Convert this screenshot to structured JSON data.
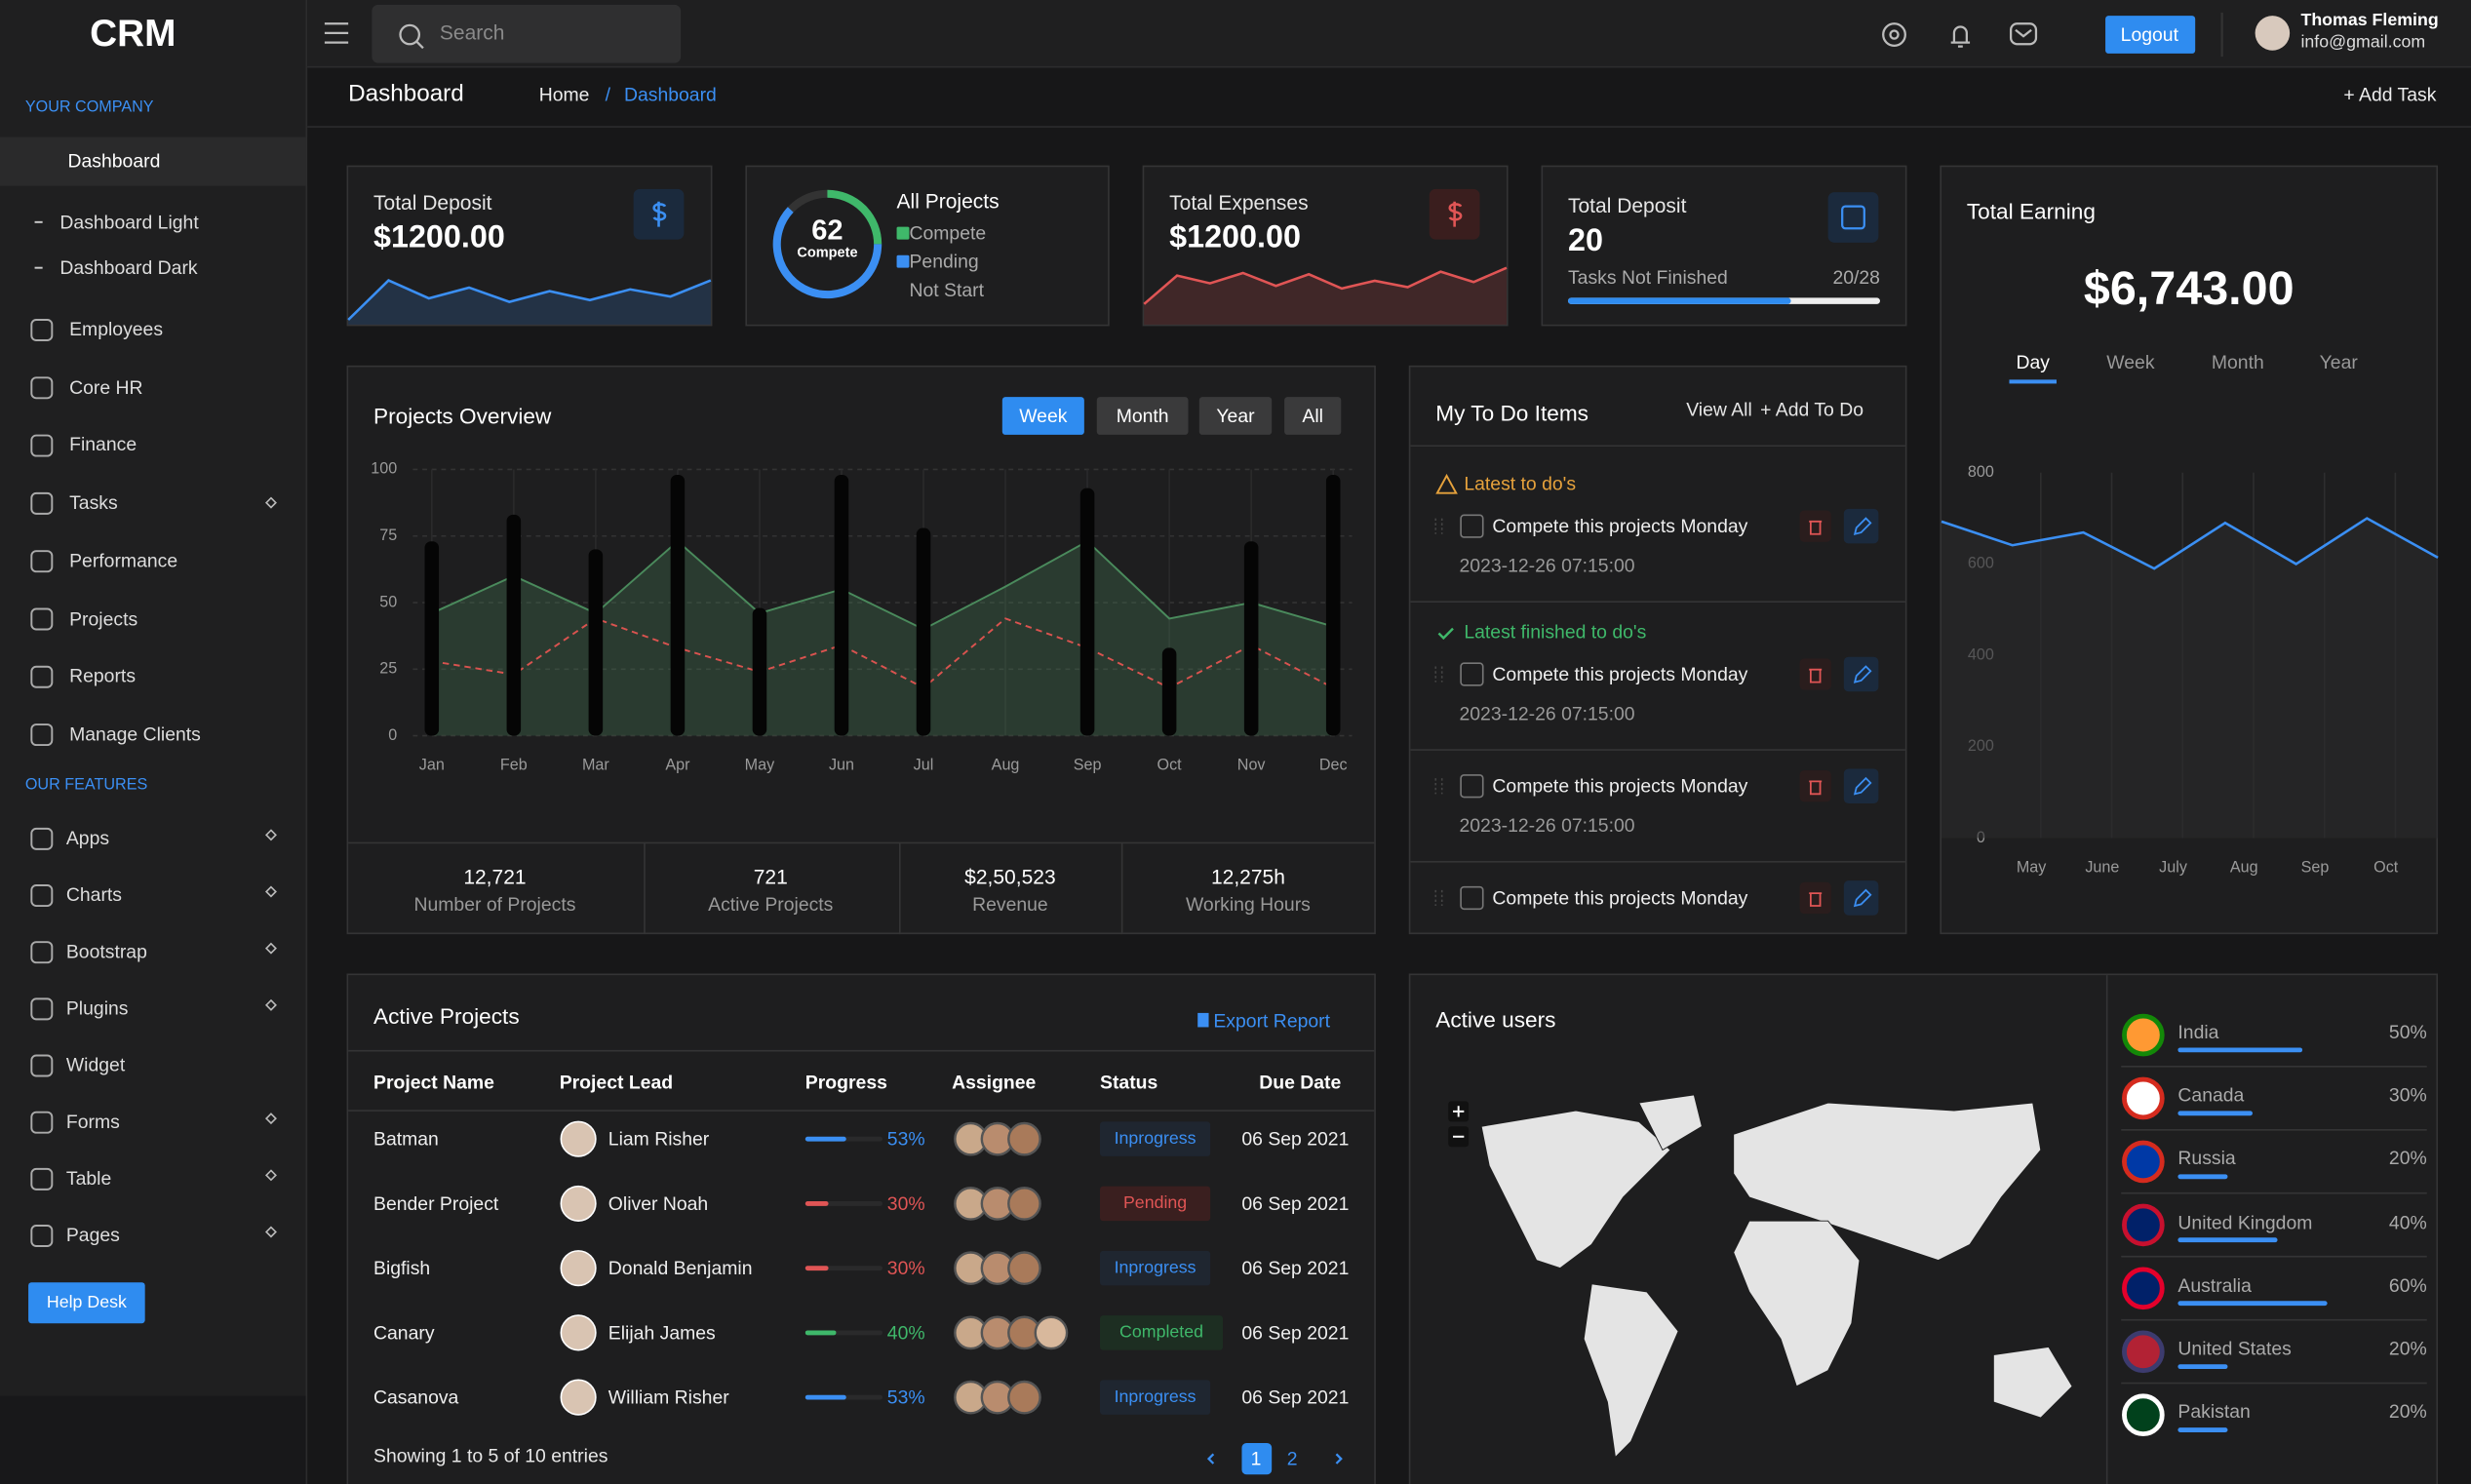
{
  "sidebar": {
    "brand": "CRM",
    "company_heading": "YOUR COMPANY",
    "main_item": "Dashboard",
    "sub_items": [
      "Dashboard Light",
      "Dashboard Dark"
    ],
    "company_items": [
      "Employees",
      "Core HR",
      "Finance",
      "Tasks",
      "Performance",
      "Projects",
      "Reports",
      "Manage Clients"
    ],
    "features_heading": "OUR FEATURES",
    "feature_items": [
      "Apps",
      "Charts",
      "Bootstrap",
      "Plugins",
      "Widget",
      "Forms",
      "Table",
      "Pages"
    ],
    "help": "Help Desk"
  },
  "topbar": {
    "search": "Search",
    "logout": "Logout",
    "user_name": "Thomas Fleming",
    "user_email": "info@gmail.com"
  },
  "breadcrumb": {
    "title": "Dashboard",
    "home": "Home",
    "separator": "/",
    "current": "Dashboard",
    "add_task": "+ Add Task"
  },
  "cards": {
    "deposit": {
      "label": "Total Deposit",
      "value": "$1200.00",
      "spark": [
        8,
        30,
        20,
        26,
        18,
        24,
        19,
        25,
        21,
        30
      ]
    },
    "projects": {
      "value": 62,
      "caption": "Compete",
      "title": "All Projects",
      "legend": [
        "Compete",
        "Pending",
        "Not Start"
      ]
    },
    "expenses": {
      "label": "Total Expenses",
      "value": "$1200.00",
      "spark": [
        10,
        32,
        26,
        34,
        24,
        33,
        22,
        28,
        23,
        35,
        27,
        38
      ]
    },
    "tasks": {
      "label": "Total Deposit",
      "value": 20,
      "caption": "Tasks Not Finished",
      "ratio": "20/28",
      "total": 28
    }
  },
  "earning": {
    "title": "Total Earning",
    "amount": "$6,743.00",
    "tabs": [
      "Day",
      "Week",
      "Month",
      "Year"
    ],
    "chart": {
      "type": "line",
      "categories": [
        null,
        "May",
        "June",
        "July",
        "Aug",
        "Sep",
        "Oct",
        null
      ],
      "values": [
        693,
        641,
        669,
        590,
        690,
        600,
        700,
        614
      ],
      "color": "#3b8ff3",
      "ylim": [
        0,
        800
      ],
      "yticks": [
        0,
        200,
        400,
        600,
        800
      ]
    }
  },
  "overview": {
    "title": "Projects Overview",
    "filters": [
      "Week",
      "Month",
      "Year",
      "All"
    ],
    "chart": {
      "type": "bar",
      "categories": [
        "Jan",
        "Feb",
        "Mar",
        "Apr",
        "May",
        "Jun",
        "Jul",
        "Aug",
        "Sep",
        "Oct",
        "Nov",
        "Dec"
      ],
      "ylim": [
        0,
        100
      ],
      "yticks": [
        0,
        25,
        50,
        75,
        100
      ],
      "series": [
        {
          "type": "area",
          "color": "#4a8a5c",
          "values": [
            46,
            60,
            46,
            73,
            46,
            55,
            40,
            56,
            73,
            44,
            50,
            41
          ]
        },
        {
          "type": "line",
          "color": "#d9534f",
          "values": [
            28,
            23,
            44,
            33,
            24,
            34,
            18,
            44,
            33,
            18,
            34,
            18
          ]
        },
        {
          "type": "bar",
          "color": "#050505",
          "values": [
            73,
            83,
            70,
            98,
            48,
            98,
            78,
            null,
            93,
            33,
            73,
            98
          ]
        }
      ]
    },
    "stats": [
      {
        "value": "12,721",
        "label": "Number of Projects"
      },
      {
        "value": "721",
        "label": "Active Projects"
      },
      {
        "value": "$2,50,523",
        "label": "Revenue"
      },
      {
        "value": "12,275h",
        "label": "Working Hours"
      }
    ]
  },
  "todo": {
    "title": "My To Do Items",
    "view_all": "View All",
    "add": "+ Add To Do",
    "latest_heading": "Latest to do's",
    "finished_heading": "Latest finished to do's",
    "items": [
      {
        "text": "Compete this projects Monday",
        "date": "2023-12-26 07:15:00"
      },
      {
        "text": "Compete this projects Monday",
        "date": "2023-12-26 07:15:00"
      },
      {
        "text": "Compete this projects Monday",
        "date": "2023-12-26 07:15:00"
      },
      {
        "text": "Compete this projects Monday"
      }
    ]
  },
  "projects": {
    "title": "Active Projects",
    "export": "Export Report",
    "columns": [
      "Project Name",
      "Project Lead",
      "Progress",
      "Assignee",
      "Status",
      "Due Date"
    ],
    "rows": [
      {
        "name": "Batman",
        "lead": "Liam Risher",
        "progress": 53,
        "progress_label": "53%",
        "color": "#3b8ff3",
        "status": "Inprogress",
        "due": "06 Sep 2021"
      },
      {
        "name": "Bender Project",
        "lead": "Oliver Noah",
        "progress": 30,
        "progress_label": "30%",
        "color": "#e05555",
        "status": "Pending",
        "due": "06 Sep 2021"
      },
      {
        "name": "Bigfish",
        "lead": "Donald Benjamin",
        "progress": 30,
        "progress_label": "30%",
        "color": "#e05555",
        "status": "Inprogress",
        "due": "06 Sep 2021"
      },
      {
        "name": "Canary",
        "lead": "Elijah James",
        "progress": 40,
        "progress_label": "40%",
        "color": "#3fb86a",
        "status": "Completed",
        "due": "06 Sep 2021"
      },
      {
        "name": "Casanova",
        "lead": "William Risher",
        "progress": 53,
        "progress_label": "53%",
        "color": "#3b8ff3",
        "status": "Inprogress",
        "due": "06 Sep 2021"
      }
    ],
    "footer": "Showing 1 to 5 of 10 entries",
    "pages": [
      "1",
      "2"
    ]
  },
  "users": {
    "title": "Active users",
    "countries": [
      {
        "name": "India",
        "value": 50,
        "label": "50%"
      },
      {
        "name": "Canada",
        "value": 30,
        "label": "30%"
      },
      {
        "name": "Russia",
        "value": 20,
        "label": "20%"
      },
      {
        "name": "United Kingdom",
        "value": 40,
        "label": "40%"
      },
      {
        "name": "Australia",
        "value": 60,
        "label": "60%"
      },
      {
        "name": "United States",
        "value": 20,
        "label": "20%"
      },
      {
        "name": "Pakistan",
        "value": 20,
        "label": "20%"
      }
    ]
  }
}
